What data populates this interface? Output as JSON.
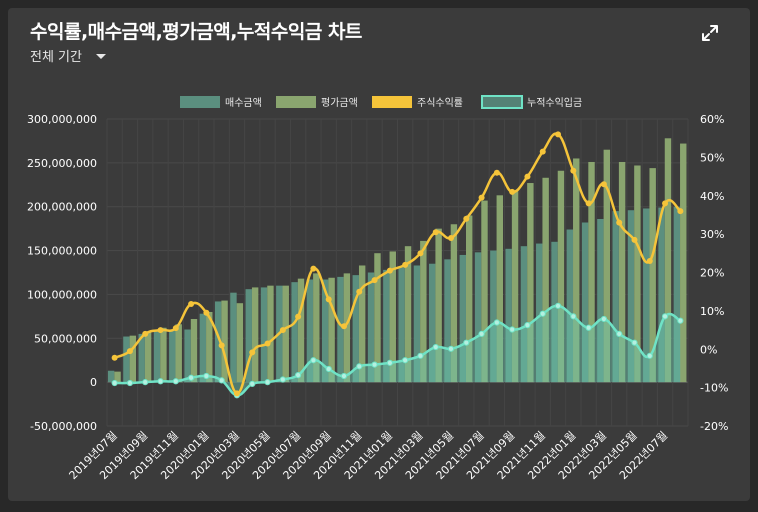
{
  "header": {
    "title": "수익률,매수금액,평가금액,누적수익금 차트",
    "period_label": "전체 기간"
  },
  "icons": {
    "expand": "expand-icon",
    "period_toggle": "chevron-down-icon"
  },
  "colors": {
    "buy_bar": "#5b8f7f",
    "eval_bar": "#8aa56f",
    "stock_line": "#f5c43a",
    "cum_area_fill": "#6dc9b0",
    "cum_area_line": "#6fe3c6"
  },
  "chart_data": {
    "type": "bar",
    "x": [
      "2019년07월",
      "2019년08월",
      "2019년09월",
      "2019년10월",
      "2019년11월",
      "2019년12월",
      "2020년01월",
      "2020년02월",
      "2020년03월",
      "2020년04월",
      "2020년05월",
      "2020년06월",
      "2020년07월",
      "2020년08월",
      "2020년09월",
      "2020년10월",
      "2020년11월",
      "2020년12월",
      "2021년01월",
      "2021년02월",
      "2021년03월",
      "2021년04월",
      "2021년05월",
      "2021년06월",
      "2021년07월",
      "2021년08월",
      "2021년09월",
      "2021년10월",
      "2021년11월",
      "2021년12월",
      "2022년01월",
      "2022년02월",
      "2022년03월",
      "2022년04월",
      "2022년05월",
      "2022년06월",
      "2022년07월",
      "2022년08월"
    ],
    "x_tick_labels": [
      "2019년07월",
      "2019년09월",
      "2019년11월",
      "2020년01월",
      "2020년03월",
      "2020년05월",
      "2020년07월",
      "2020년09월",
      "2020년11월",
      "2021년01월",
      "2021년03월",
      "2021년05월",
      "2021년07월",
      "2021년09월",
      "2021년11월",
      "2022년01월",
      "2022년03월",
      "2022년05월",
      "2022년07월"
    ],
    "series": [
      {
        "name": "매수금액",
        "type": "bar",
        "axis": "left",
        "values": [
          13000000,
          52000000,
          55000000,
          58000000,
          60000000,
          60000000,
          78000000,
          92000000,
          102000000,
          106000000,
          108000000,
          110000000,
          114000000,
          117000000,
          117000000,
          120000000,
          122000000,
          125000000,
          128000000,
          131000000,
          133000000,
          135000000,
          140000000,
          145000000,
          148000000,
          150000000,
          152000000,
          155000000,
          158000000,
          160000000,
          174000000,
          182000000,
          186000000,
          195000000,
          196000000,
          198000000,
          199000000,
          200000000
        ]
      },
      {
        "name": "평가금액",
        "type": "bar",
        "axis": "left",
        "values": [
          12000000,
          53000000,
          58000000,
          62000000,
          66000000,
          72000000,
          80000000,
          93000000,
          90000000,
          108000000,
          110000000,
          110000000,
          118000000,
          124000000,
          119000000,
          124000000,
          133000000,
          147000000,
          149000000,
          155000000,
          161000000,
          175000000,
          180000000,
          190000000,
          207000000,
          213000000,
          218000000,
          227000000,
          233000000,
          241000000,
          255000000,
          251000000,
          265000000,
          251000000,
          247000000,
          244000000,
          278000000,
          272000000
        ]
      },
      {
        "name": "주식수익률",
        "type": "line",
        "axis": "right",
        "values": [
          -2.2,
          -0.5,
          4.0,
          5.0,
          5.5,
          11.8,
          9.5,
          1.0,
          -11.5,
          -0.8,
          1.5,
          5.0,
          8.5,
          21.0,
          13.0,
          6.0,
          15.0,
          18.0,
          20.5,
          22.0,
          25.0,
          30.5,
          29.0,
          34.0,
          39.5,
          46.0,
          41.0,
          45.0,
          51.5,
          56.0,
          46.5,
          38.0,
          43.0,
          33.0,
          28.5,
          23.0,
          38.0,
          36.0
        ]
      },
      {
        "name": "누적수익입금",
        "type": "area",
        "axis": "left",
        "values": [
          -1000000,
          -1000000,
          0,
          1000000,
          1000000,
          5000000,
          7000000,
          2000000,
          -15000000,
          -2000000,
          0,
          3000000,
          8000000,
          25000000,
          15000000,
          7000000,
          18000000,
          20000000,
          22000000,
          25000000,
          30000000,
          40000000,
          38000000,
          45000000,
          55000000,
          68000000,
          60000000,
          65000000,
          78000000,
          87000000,
          75000000,
          62000000,
          72000000,
          55000000,
          45000000,
          30000000,
          75000000,
          70000000
        ]
      }
    ],
    "y_left": {
      "min": -50000000,
      "max": 300000000,
      "ticks": [
        "300,000,000",
        "250,000,000",
        "200,000,000",
        "150,000,000",
        "100,000,000",
        "50,000,000",
        "0",
        "-50,000,000"
      ]
    },
    "y_right": {
      "min": -20,
      "max": 60,
      "ticks": [
        "60%",
        "50%",
        "40%",
        "30%",
        "20%",
        "10%",
        "0%",
        "-10%",
        "-20%"
      ]
    },
    "legend": [
      "매수금액",
      "평가금액",
      "주식수익률",
      "누적수익입금"
    ],
    "legend_position": "top-center",
    "grid": true
  }
}
